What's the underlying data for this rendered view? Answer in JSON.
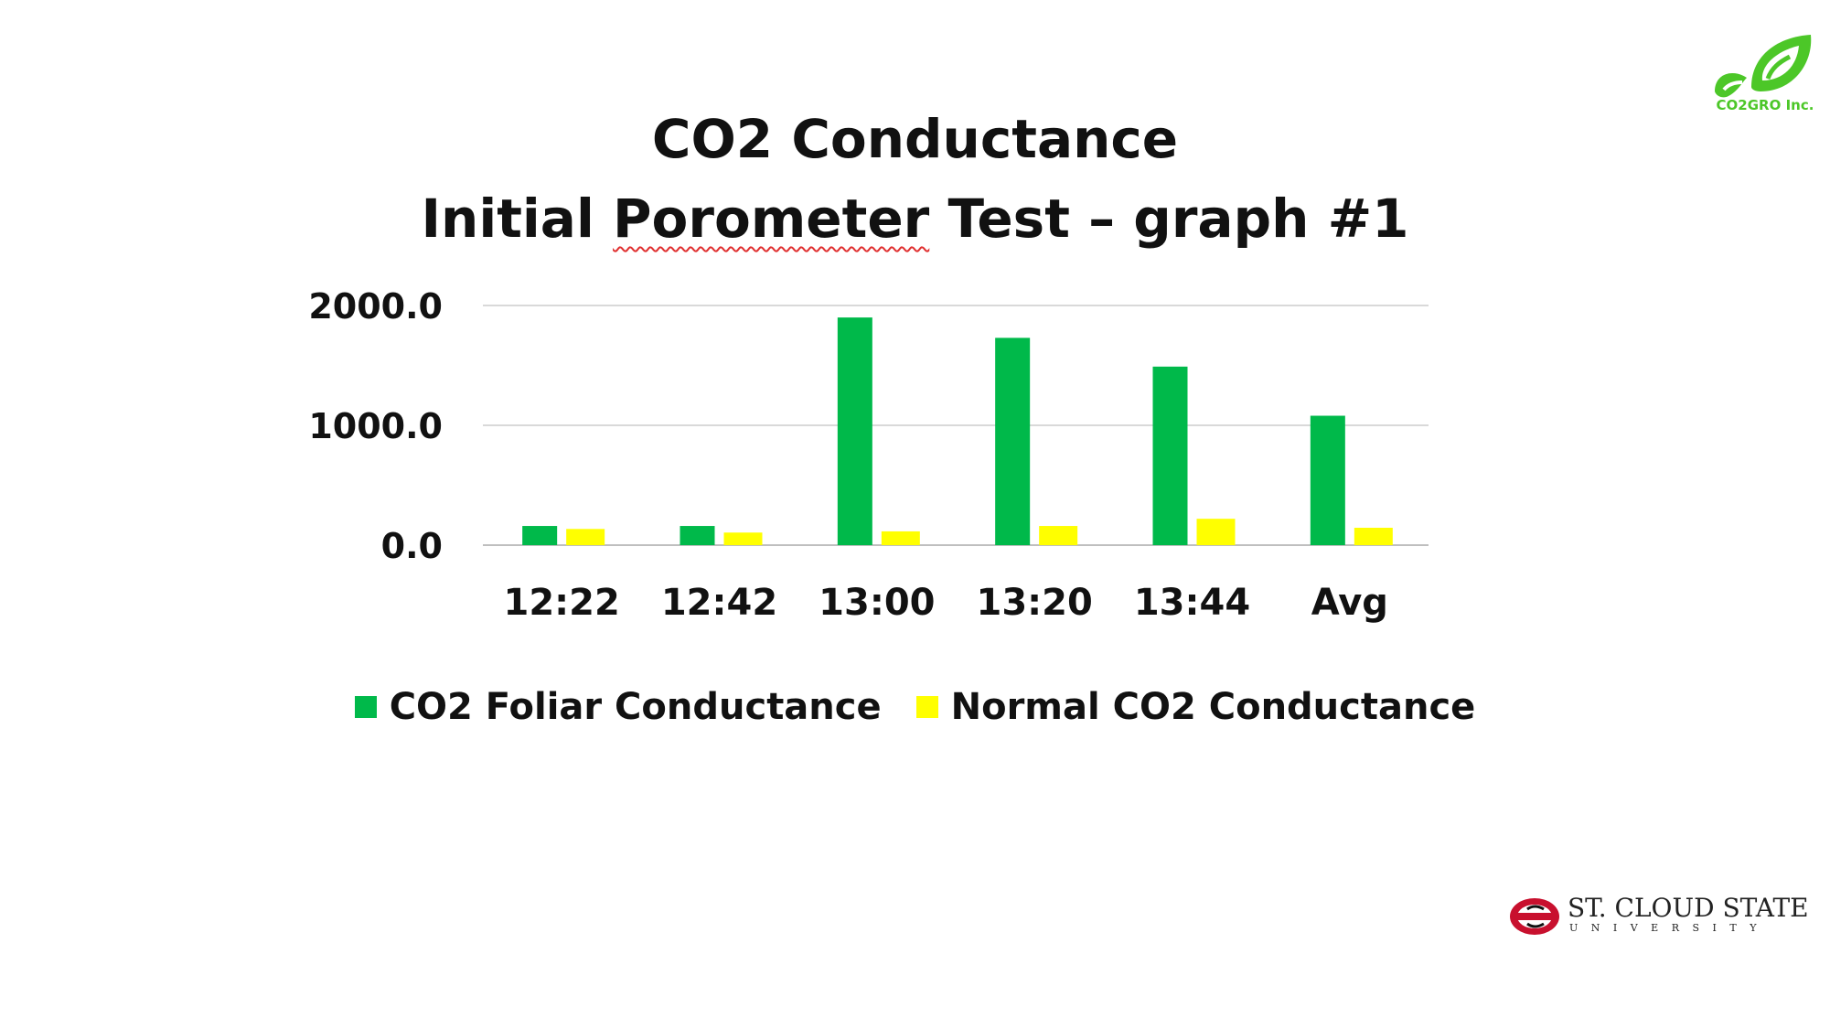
{
  "colors": {
    "foliar": "#00b94a",
    "normal": "#ffff00",
    "grid": "#d9d9d9",
    "logo_green": "#4cc728",
    "scsu_red": "#c8102e"
  },
  "logos": {
    "co2gro_text": "CO2GRO Inc.",
    "scsu_name": "ST. CLOUD STATE",
    "scsu_sub": "UNIVERSITY"
  },
  "chart_data": {
    "type": "bar",
    "title": "CO2 Conductance",
    "subtitle": "Initial Porometer Test – graph #1",
    "categories": [
      "12:22",
      "12:42",
      "13:00",
      "13:20",
      "13:44",
      "Avg"
    ],
    "series": [
      {
        "name": "CO2 Foliar Conductance",
        "color": "#00b94a",
        "values": [
          160,
          160,
          1900,
          1730,
          1490,
          1080
        ]
      },
      {
        "name": "Normal CO2 Conductance",
        "color": "#ffff00",
        "values": [
          135,
          105,
          115,
          160,
          220,
          145
        ]
      }
    ],
    "yticks": [
      "0.0",
      "1000.0",
      "2000.0"
    ],
    "ylim": [
      0,
      2000
    ],
    "grid": true,
    "legend_position": "bottom"
  }
}
